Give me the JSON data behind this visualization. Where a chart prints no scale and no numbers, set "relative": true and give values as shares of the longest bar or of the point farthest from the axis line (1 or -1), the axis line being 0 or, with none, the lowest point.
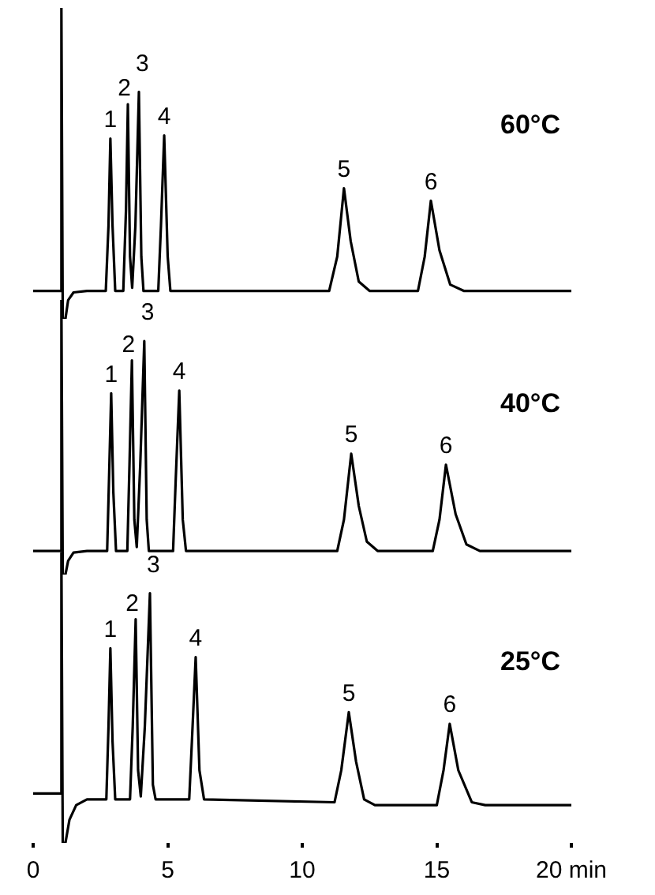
{
  "chart_data": [
    {
      "type": "line",
      "title": "60°C",
      "relative": true,
      "xlim": [
        0,
        20
      ],
      "tick_labels": false,
      "grid": false,
      "legend": false,
      "marker": "none",
      "series": [
        {
          "color": "#000000",
          "x": [
            0,
            1.0,
            1.05,
            1.1,
            1.2,
            1.3,
            1.5,
            2.0,
            2.7,
            2.8,
            2.87,
            2.95,
            3.05,
            3.35,
            3.45,
            3.52,
            3.6,
            3.68,
            3.8,
            3.93,
            4.02,
            4.1,
            4.65,
            4.75,
            4.87,
            5.0,
            5.1,
            11.0,
            11.3,
            11.55,
            11.8,
            12.1,
            12.5,
            14.3,
            14.55,
            14.78,
            15.1,
            15.5,
            16.0,
            20
          ],
          "values": [
            0.09,
            0.09,
            1.0,
            0,
            0,
            0.06,
            0.085,
            0.09,
            0.09,
            0.3,
            0.58,
            0.3,
            0.09,
            0.09,
            0.35,
            0.69,
            0.2,
            0.1,
            0.3,
            0.73,
            0.2,
            0.09,
            0.09,
            0.3,
            0.59,
            0.2,
            0.09,
            0.09,
            0.2,
            0.42,
            0.25,
            0.12,
            0.09,
            0.09,
            0.2,
            0.38,
            0.22,
            0.11,
            0.09,
            0.09
          ]
        }
      ],
      "annotations": [
        {
          "text": "1",
          "x": 2.87,
          "y": 0.58
        },
        {
          "text": "2",
          "x": 3.52,
          "y": 0.69
        },
        {
          "text": "3",
          "x": 3.93,
          "y": 0.73
        },
        {
          "text": "4",
          "x": 4.87,
          "y": 0.59
        },
        {
          "text": "5",
          "x": 11.55,
          "y": 0.42
        },
        {
          "text": "6",
          "x": 14.78,
          "y": 0.38
        }
      ]
    },
    {
      "type": "line",
      "title": "40°C",
      "relative": true,
      "xlim": [
        0,
        20
      ],
      "tick_labels": false,
      "grid": false,
      "legend": false,
      "marker": "none",
      "series": [
        {
          "color": "#000000",
          "x": [
            0,
            1.0,
            1.05,
            1.1,
            1.2,
            1.3,
            1.5,
            2.0,
            2.75,
            2.82,
            2.9,
            2.98,
            3.08,
            3.5,
            3.58,
            3.67,
            3.76,
            3.85,
            3.98,
            4.13,
            4.22,
            4.3,
            5.2,
            5.3,
            5.43,
            5.56,
            5.68,
            11.3,
            11.55,
            11.82,
            12.1,
            12.4,
            12.8,
            14.85,
            15.1,
            15.34,
            15.7,
            16.1,
            16.6,
            20
          ],
          "values": [
            0.086,
            0.086,
            1.0,
            0,
            0,
            0.05,
            0.08,
            0.086,
            0.086,
            0.35,
            0.66,
            0.3,
            0.086,
            0.086,
            0.4,
            0.78,
            0.2,
            0.1,
            0.4,
            0.85,
            0.2,
            0.086,
            0.086,
            0.35,
            0.67,
            0.2,
            0.086,
            0.086,
            0.2,
            0.44,
            0.25,
            0.12,
            0.086,
            0.086,
            0.2,
            0.4,
            0.22,
            0.11,
            0.086,
            0.086
          ]
        }
      ],
      "annotations": [
        {
          "text": "1",
          "x": 2.9,
          "y": 0.66
        },
        {
          "text": "2",
          "x": 3.67,
          "y": 0.78
        },
        {
          "text": "3",
          "x": 4.13,
          "y": 0.85
        },
        {
          "text": "4",
          "x": 5.43,
          "y": 0.67
        },
        {
          "text": "5",
          "x": 11.82,
          "y": 0.44
        },
        {
          "text": "6",
          "x": 15.34,
          "y": 0.4
        }
      ]
    },
    {
      "type": "line",
      "title": "25°C",
      "relative": true,
      "xlim": [
        0,
        20
      ],
      "xticks": [
        0,
        5,
        10,
        15,
        {
          "value": 20,
          "label": "20 min"
        }
      ],
      "tick_labels": "x",
      "grid": false,
      "legend": false,
      "marker": "none",
      "series": [
        {
          "color": "#000000",
          "x": [
            0,
            1.0,
            1.05,
            1.1,
            1.2,
            1.35,
            1.6,
            2.0,
            2.72,
            2.8,
            2.87,
            2.95,
            3.05,
            3.6,
            3.7,
            3.81,
            3.9,
            4.0,
            4.15,
            4.34,
            4.45,
            4.55,
            5.8,
            5.9,
            6.04,
            6.18,
            6.35,
            11.2,
            11.45,
            11.73,
            12.0,
            12.3,
            12.7,
            15.0,
            15.25,
            15.48,
            15.8,
            16.3,
            16.8,
            20
          ],
          "values": [
            0.17,
            0.17,
            1.0,
            0,
            0,
            0.08,
            0.13,
            0.15,
            0.15,
            0.4,
            0.67,
            0.35,
            0.15,
            0.15,
            0.4,
            0.77,
            0.25,
            0.16,
            0.4,
            0.86,
            0.2,
            0.15,
            0.15,
            0.35,
            0.64,
            0.25,
            0.15,
            0.14,
            0.25,
            0.45,
            0.28,
            0.15,
            0.13,
            0.13,
            0.25,
            0.41,
            0.25,
            0.14,
            0.13,
            0.13
          ]
        }
      ],
      "annotations": [
        {
          "text": "1",
          "x": 2.87,
          "y": 0.67
        },
        {
          "text": "2",
          "x": 3.81,
          "y": 0.77
        },
        {
          "text": "3",
          "x": 4.34,
          "y": 0.86
        },
        {
          "text": "4",
          "x": 6.04,
          "y": 0.64
        },
        {
          "text": "5",
          "x": 11.73,
          "y": 0.45
        },
        {
          "text": "6",
          "x": 15.48,
          "y": 0.41
        }
      ]
    }
  ]
}
